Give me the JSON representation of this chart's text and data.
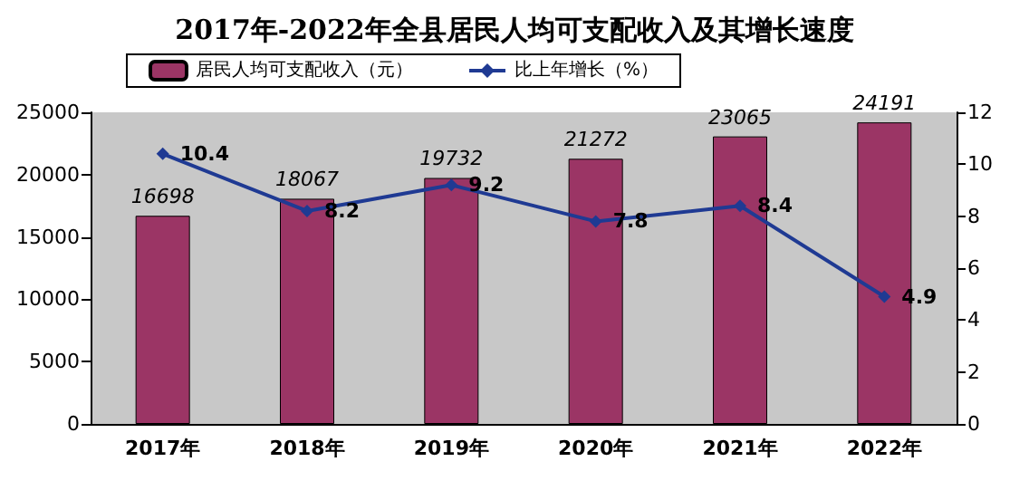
{
  "chart_data": {
    "type": "bar",
    "title": "2017年-2022年全县居民人均可支配收入及其增长速度",
    "categories": [
      "2017年",
      "2018年",
      "2019年",
      "2020年",
      "2021年",
      "2022年"
    ],
    "series": [
      {
        "name": "居民人均可支配收入（元）",
        "color": "#9b3565",
        "values": [
          16698,
          18067,
          19732,
          21272,
          23065,
          24191
        ]
      },
      {
        "name": "比上年增长（%）",
        "type": "line",
        "axis": "y2",
        "color": "#1f3a93",
        "values": [
          10.4,
          8.2,
          9.2,
          7.8,
          8.4,
          4.9
        ]
      }
    ],
    "ylim": [
      0,
      25000
    ],
    "yticks": [
      0,
      5000,
      10000,
      15000,
      20000,
      25000
    ],
    "y2lim": [
      0,
      12
    ],
    "y2ticks": [
      0,
      2,
      4,
      6,
      8,
      10,
      12
    ],
    "data_labels": true,
    "legend": "top",
    "grid": false,
    "marker": "diamond"
  }
}
